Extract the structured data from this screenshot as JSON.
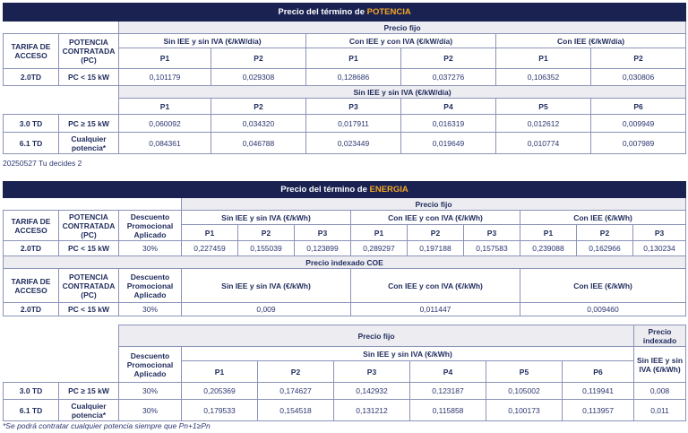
{
  "potencia": {
    "title_prefix": "Precio del término de ",
    "title_accent": "POTENCIA",
    "precio_fijo": "Precio fijo",
    "col_tarifa": "TARIFA DE ACCESO",
    "col_potencia": "POTENCIA CONTRATADA (PC)",
    "groups": [
      "Sin IEE y sin IVA (€/kW/día)",
      "Con IEE y con IVA (€/kW/día)",
      "Con IEE (€/kW/día)"
    ],
    "p1": "P1",
    "p2": "P2",
    "p3": "P3",
    "p4": "P4",
    "p5": "P5",
    "p6": "P6",
    "row_20": {
      "tarifa": "2.0TD",
      "pc": "PC < 15 kW",
      "values": [
        "0,101179",
        "0,029308",
        "0,128686",
        "0,037276",
        "0,106352",
        "0,030806"
      ]
    },
    "group6": "Sin IEE y sin IVA (€/kW/día)",
    "row_30": {
      "tarifa": "3.0 TD",
      "pc": "PC ≥ 15 kW",
      "values": [
        "0,060092",
        "0,034320",
        "0,017911",
        "0,016319",
        "0,012612",
        "0,009949"
      ]
    },
    "row_61": {
      "tarifa": "6.1 TD",
      "pc": "Cualquier potencia*",
      "values": [
        "0,084361",
        "0,046788",
        "0,023449",
        "0,019649",
        "0,010774",
        "0,007989"
      ]
    },
    "note": "20250527 Tu decides 2"
  },
  "energia": {
    "title_prefix": "Precio del término de ",
    "title_accent": "ENERGIA",
    "precio_fijo": "Precio fijo",
    "col_tarifa": "TARIFA DE ACCESO",
    "col_potencia": "POTENCIA CONTRATADA (PC)",
    "col_descuento": "Descuento Promocional Aplicado",
    "groups": [
      "Sin IEE y sin IVA (€/kWh)",
      "Con IEE y con IVA (€/kWh)",
      "Con IEE (€/kWh)"
    ],
    "row_20": {
      "tarifa": "2.0TD",
      "pc": "PC < 15 kW",
      "descuento": "30%",
      "values": [
        "0,227459",
        "0,155039",
        "0,123899",
        "0,289297",
        "0,197188",
        "0,157583",
        "0,239088",
        "0,162966",
        "0,130234"
      ]
    },
    "indexado_title": "Precio indexado COE",
    "indexado_row": {
      "tarifa": "2.0TD",
      "pc": "PC < 15 kW",
      "descuento": "30%",
      "values": [
        "0,009",
        "0,011447",
        "0,009460"
      ]
    },
    "precio_indexado": "Precio indexado",
    "group6": "Sin IEE y sin IVA (€/kWh)",
    "indexado_col": "Sin IEE y sin IVA (€/kWh)",
    "row_30": {
      "tarifa": "3.0 TD",
      "pc": "PC ≥ 15 kW",
      "descuento": "30%",
      "values": [
        "0,205369",
        "0,174627",
        "0,142932",
        "0,123187",
        "0,105002",
        "0,119941"
      ],
      "indexado": "0,008"
    },
    "row_61": {
      "tarifa": "6.1 TD",
      "pc": "Cualquier potencia*",
      "descuento": "30%",
      "values": [
        "0,179533",
        "0,154518",
        "0,131212",
        "0,115858",
        "0,100173",
        "0,113957"
      ],
      "indexado": "0,011"
    },
    "footnote": "*Se podrá contratar cualquier potencia siempre que Pn+1≥Pn"
  }
}
